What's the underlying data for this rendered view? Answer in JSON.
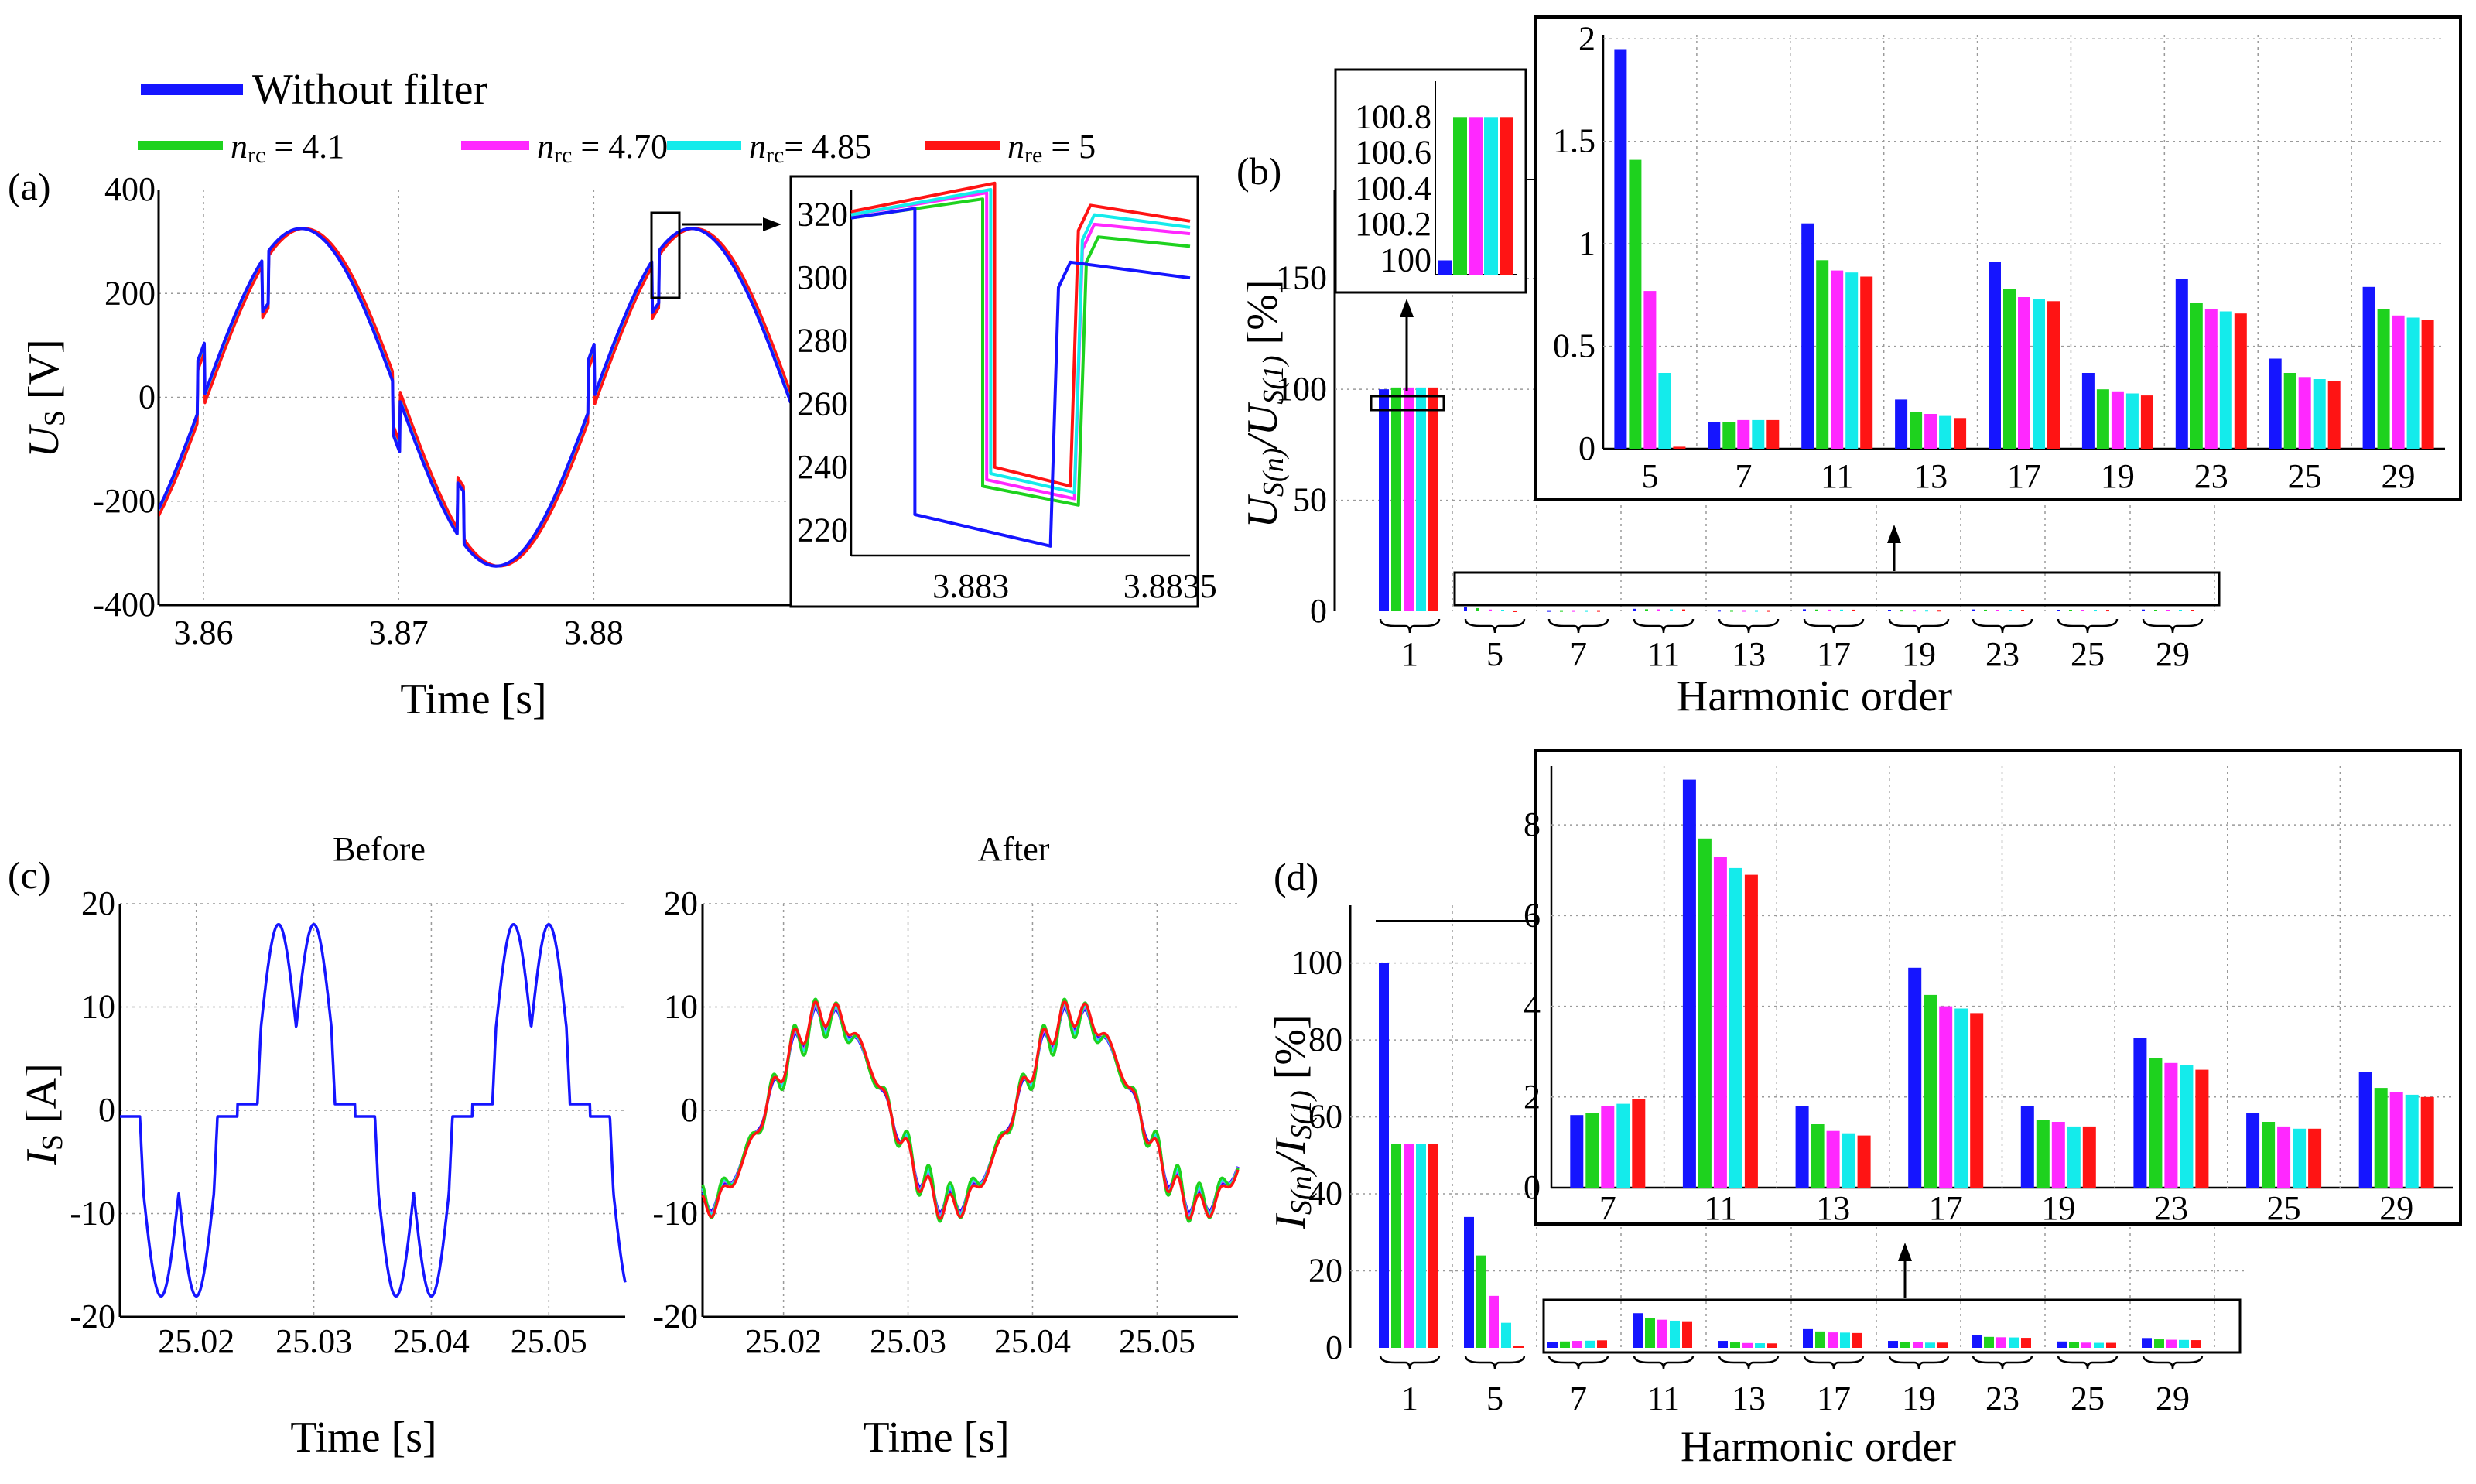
{
  "colors": {
    "without_filter": "#1515ff",
    "nrc_4_1": "#1ed21e",
    "nrc_4_70": "#ff28ff",
    "nrc_4_85": "#14ebeb",
    "nre_5": "#ff1414"
  },
  "legend": {
    "without_filter": "Without filter",
    "items": [
      {
        "sym": "n",
        "sub": "rc",
        "rest": " = 4.1",
        "color": "#1ed21e"
      },
      {
        "sym": "n",
        "sub": "rc",
        "rest": " = 4.70",
        "color": "#ff28ff"
      },
      {
        "sym": "n",
        "sub": "rc",
        "rest": "= 4.85",
        "color": "#14ebeb"
      },
      {
        "sym": "n",
        "sub": "re",
        "rest": " = 5",
        "color": "#ff1414"
      }
    ]
  },
  "panel_labels": {
    "a": "(a)",
    "b": "(b)",
    "c": "(c)",
    "d": "(d)"
  },
  "chart_data": [
    {
      "id": "a",
      "type": "line",
      "ylabel_sym": "U",
      "ylabel_sub": "S",
      "ylabel_unit": " [V]",
      "xlabel": "Time  [s]",
      "xlim": [
        3.8577,
        3.8901
      ],
      "ylim": [
        -400,
        400
      ],
      "xticks": [
        "3.86",
        "3.87",
        "3.88"
      ],
      "yticks": [
        "400",
        "200",
        "0",
        "-200",
        "-400"
      ],
      "frequency_hz": 50,
      "amplitude": 325,
      "notch_times": [
        3.8597,
        3.863,
        3.8697,
        3.873,
        3.8797,
        3.883
      ],
      "notch_depth": 100,
      "series": [
        {
          "name": "Without filter",
          "phase_shift": 0
        },
        {
          "name": "nrc = 4.1",
          "phase_shift": 8e-05
        },
        {
          "name": "nrc = 4.70",
          "phase_shift": 0.00012
        },
        {
          "name": "nrc = 4.85",
          "phase_shift": 0.00015
        },
        {
          "name": "nre = 5",
          "phase_shift": 0.00018
        }
      ],
      "inset": {
        "xlim": [
          3.8827,
          3.88355
        ],
        "ylim": [
          212,
          328
        ],
        "xticks": [
          "3.883",
          "3.8835"
        ],
        "yticks": [
          "320",
          "300",
          "280",
          "260",
          "240",
          "220"
        ],
        "series": [
          {
            "name": "Without filter",
            "drop_start": 3.88286,
            "drop_end": 3.8832,
            "pre": [
              319,
              322
            ],
            "floor": [
              225,
              215
            ],
            "post": [
              305,
              300
            ]
          },
          {
            "name": "nrc = 4.1",
            "drop_start": 3.88303,
            "drop_end": 3.88327,
            "pre": [
              319,
              325
            ],
            "floor": [
              234,
              228
            ],
            "post": [
              313,
              310
            ]
          },
          {
            "name": "nrc = 4.70",
            "drop_start": 3.88304,
            "drop_end": 3.88326,
            "pre": [
              320,
              327
            ],
            "floor": [
              236,
              230
            ],
            "post": [
              317,
              314
            ]
          },
          {
            "name": "nrc = 4.85",
            "drop_start": 3.88305,
            "drop_end": 3.88326,
            "pre": [
              320,
              328
            ],
            "floor": [
              238,
              232
            ],
            "post": [
              320,
              316
            ]
          },
          {
            "name": "nre = 5",
            "drop_start": 3.88306,
            "drop_end": 3.88325,
            "pre": [
              321,
              330
            ],
            "floor": [
              240,
              234
            ],
            "post": [
              323,
              318
            ]
          }
        ]
      }
    },
    {
      "id": "b",
      "type": "bar",
      "ylabel_parts": [
        "U",
        "S(n)",
        "/U",
        "S(1)",
        "  [%]"
      ],
      "xlabel": "Harmonic order",
      "categories": [
        "1",
        "5",
        "7",
        "11",
        "13",
        "17",
        "19",
        "23",
        "25",
        "29"
      ],
      "ylim": [
        0,
        190
      ],
      "yticks": [
        "0",
        "50",
        "100",
        "150"
      ],
      "series": [
        {
          "name": "Without filter",
          "values": [
            100,
            1.95,
            0.13,
            1.1,
            0.24,
            0.91,
            0.37,
            0.83,
            0.44,
            0.79
          ]
        },
        {
          "name": "nrc = 4.1",
          "values": [
            100.8,
            1.41,
            0.13,
            0.92,
            0.18,
            0.78,
            0.29,
            0.71,
            0.37,
            0.68
          ]
        },
        {
          "name": "nrc = 4.70",
          "values": [
            100.8,
            0.77,
            0.14,
            0.87,
            0.17,
            0.74,
            0.28,
            0.68,
            0.35,
            0.65
          ]
        },
        {
          "name": "nrc = 4.85",
          "values": [
            100.8,
            0.37,
            0.14,
            0.86,
            0.16,
            0.73,
            0.27,
            0.67,
            0.34,
            0.64
          ]
        },
        {
          "name": "nre = 5",
          "values": [
            100.8,
            0.01,
            0.14,
            0.84,
            0.15,
            0.72,
            0.26,
            0.66,
            0.33,
            0.63
          ]
        }
      ],
      "inset_harmonics": {
        "categories": [
          "5",
          "7",
          "11",
          "13",
          "17",
          "19",
          "23",
          "25",
          "29"
        ],
        "ylim": [
          0,
          2.02
        ],
        "yticks": [
          "0",
          "0.5",
          "1",
          "1.5",
          "2"
        ]
      },
      "inset_fundamental": {
        "ylim": [
          99.92,
          101.0
        ],
        "yticks": [
          "100.8",
          "100.6",
          "100.4",
          "100.2",
          "100"
        ]
      }
    },
    {
      "id": "c",
      "type": "line",
      "before_title": "Before",
      "after_title": "After",
      "ylabel_sym": "I",
      "ylabel_sub": "S",
      "ylabel_unit": " [A]",
      "xlabel": "Time  [s]",
      "xlim": [
        25.0135,
        25.0565
      ],
      "ylim": [
        -20,
        20
      ],
      "xticks": [
        "25.02",
        "25.03",
        "25.04",
        "25.05"
      ],
      "yticks": [
        "20",
        "10",
        "0",
        "-10",
        "-20"
      ],
      "frequency_hz": 50,
      "before_peak": 18,
      "after_series": [
        {
          "name": "Without filter",
          "amp": 9.5
        },
        {
          "name": "nrc = 4.70",
          "amp": 10.2
        },
        {
          "name": "nrc = 4.85",
          "amp": 10.6
        },
        {
          "name": "nrc = 4.1",
          "amp": 11.6
        },
        {
          "name": "nre = 5",
          "amp": 10.8
        }
      ]
    },
    {
      "id": "d",
      "type": "bar",
      "ylabel_parts": [
        "I",
        "S(n)",
        "/I",
        "S(1)",
        "  [%]"
      ],
      "xlabel": "Harmonic order",
      "categories": [
        "1",
        "5",
        "7",
        "11",
        "13",
        "17",
        "19",
        "23",
        "25",
        "29"
      ],
      "ylim": [
        0,
        115
      ],
      "yticks": [
        "0",
        "20",
        "40",
        "60",
        "80",
        "100"
      ],
      "series": [
        {
          "name": "Without filter",
          "values": [
            100,
            34,
            1.6,
            9.0,
            1.8,
            4.85,
            1.8,
            3.3,
            1.65,
            2.55
          ]
        },
        {
          "name": "nrc = 4.1",
          "values": [
            53,
            24,
            1.65,
            7.7,
            1.4,
            4.25,
            1.5,
            2.85,
            1.45,
            2.2
          ]
        },
        {
          "name": "nrc = 4.70",
          "values": [
            53,
            13.5,
            1.8,
            7.3,
            1.25,
            4.0,
            1.45,
            2.75,
            1.35,
            2.1
          ]
        },
        {
          "name": "nrc = 4.85",
          "values": [
            53,
            6.5,
            1.85,
            7.05,
            1.2,
            3.95,
            1.35,
            2.7,
            1.3,
            2.05
          ]
        },
        {
          "name": "nre = 5",
          "values": [
            53,
            0.5,
            1.95,
            6.9,
            1.15,
            3.85,
            1.35,
            2.6,
            1.3,
            2.0
          ]
        }
      ],
      "inset_harmonics": {
        "categories": [
          "7",
          "11",
          "13",
          "17",
          "19",
          "23",
          "25",
          "29"
        ],
        "ylim": [
          0,
          9.3
        ],
        "yticks": [
          "0",
          "2",
          "4",
          "6",
          "8"
        ]
      }
    }
  ]
}
